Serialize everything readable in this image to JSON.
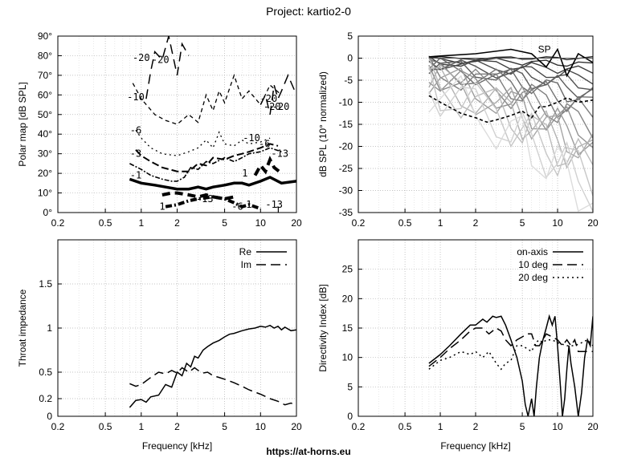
{
  "page": {
    "title": "Project: kartio2-0",
    "footer_url": "https://at-horns.eu"
  },
  "chart_data": [
    {
      "id": "polar-map",
      "type": "contour",
      "xlabel": "",
      "ylabel": "Polar map [dB SPL]",
      "xscale": "log",
      "xlim": [
        0.2,
        20
      ],
      "ylim": [
        0,
        90
      ],
      "xticks": [
        "0.2",
        "0.5",
        "1",
        "2",
        "5",
        "10",
        "20"
      ],
      "xtick_values": [
        0.2,
        0.5,
        1,
        2,
        5,
        10,
        20
      ],
      "yticks": [
        "0°",
        "10°",
        "20°",
        "30°",
        "40°",
        "50°",
        "60°",
        "70°",
        "80°",
        "90°"
      ],
      "ytick_values": [
        0,
        10,
        20,
        30,
        40,
        50,
        60,
        70,
        80,
        90
      ],
      "grid": true,
      "contours": [
        {
          "level": "-1",
          "x": [
            0.8,
            1.0,
            1.3,
            1.6,
            2.0,
            2.5,
            3.0,
            3.5,
            4.0,
            5.0,
            6.0,
            7.0,
            8.0,
            10.0,
            12.0,
            15.0,
            20.0
          ],
          "y": [
            17,
            15,
            14,
            13,
            12,
            12,
            13,
            12,
            13,
            14,
            15,
            15,
            14,
            16,
            18,
            15,
            16
          ]
        },
        {
          "level": "",
          "x": [
            0.8,
            1.0,
            1.2,
            1.5,
            1.8,
            2.0,
            2.3,
            2.6,
            3.0,
            3.5,
            4.0,
            5.0,
            6.0,
            7.0,
            8.0,
            10.0,
            12.0,
            15.0
          ],
          "y": [
            25,
            22,
            19,
            17,
            16,
            16,
            18,
            23,
            22,
            26,
            25,
            28,
            26,
            28,
            30,
            31,
            33,
            31
          ]
        },
        {
          "level": "-3",
          "x": [
            0.9,
            1.0,
            1.2,
            1.5,
            2.0,
            2.5,
            3.0,
            3.5,
            4.0,
            5.0,
            6.0,
            7.0,
            8.0,
            10.0,
            12.0,
            14.0
          ],
          "y": [
            32,
            29,
            26,
            23,
            21,
            21,
            25,
            24,
            28,
            27,
            29,
            30,
            31,
            33,
            35,
            34
          ]
        },
        {
          "level": "-6",
          "x": [
            0.9,
            1.0,
            1.2,
            1.5,
            2.0,
            2.5,
            3.0,
            3.5,
            4.0,
            4.5,
            5.0,
            6.0,
            7.0,
            8.0,
            10.0,
            12.0
          ],
          "y": [
            42,
            38,
            33,
            30,
            29,
            31,
            33,
            37,
            33,
            41,
            35,
            34,
            37,
            35,
            36,
            38
          ]
        },
        {
          "level": "-10",
          "x": [
            0.85,
            1.0,
            1.3,
            1.6,
            2.0,
            2.5,
            3.0,
            3.5,
            4.0,
            4.5,
            5.0,
            6.0,
            7.0,
            8.0,
            10.0,
            12.0,
            15.0
          ],
          "y": [
            66,
            58,
            50,
            47,
            45,
            50,
            46,
            60,
            52,
            62,
            56,
            70,
            58,
            62,
            55,
            65,
            60
          ]
        },
        {
          "level": "-20",
          "x": [
            1.1,
            1.2,
            1.3,
            1.5,
            1.7,
            2.0,
            2.2,
            2.5
          ],
          "y": [
            58,
            72,
            82,
            78,
            90,
            70,
            86,
            80
          ]
        },
        {
          "level": "-20",
          "x": [
            10.0,
            11.0,
            12.0,
            13.0,
            14.0,
            15.0,
            17.0,
            20.0
          ],
          "y": [
            55,
            60,
            50,
            65,
            58,
            62,
            70,
            60
          ]
        },
        {
          "level": "-13",
          "x": [
            1.5,
            1.8,
            2.0,
            2.5,
            3.0,
            3.5,
            4.0,
            5.0,
            6.0
          ],
          "y": [
            9,
            10,
            10,
            9,
            8,
            9,
            8,
            7,
            8
          ]
        },
        {
          "level": "1",
          "x": [
            1.6,
            2.0,
            2.5,
            3.0,
            4.0,
            5.0,
            6.0,
            7.0,
            8.0,
            10.0
          ],
          "y": [
            3,
            4,
            6,
            7,
            8,
            7,
            5,
            3,
            4,
            2
          ]
        },
        {
          "level": "-13",
          "x": [
            9.0,
            10.0,
            11.0,
            12.0,
            13.0,
            15.0
          ],
          "y": [
            19,
            24,
            21,
            27,
            23,
            20
          ]
        }
      ],
      "contour_labels": [
        {
          "text": "-20",
          "x": 1.0,
          "y": 79
        },
        {
          "text": "-20",
          "x": 1.45,
          "y": 78
        },
        {
          "text": "-10",
          "x": 0.9,
          "y": 59
        },
        {
          "text": "-6",
          "x": 0.9,
          "y": 42
        },
        {
          "text": "-3",
          "x": 0.9,
          "y": 30
        },
        {
          "text": "-1",
          "x": 0.9,
          "y": 19
        },
        {
          "text": "1",
          "x": 1.5,
          "y": 3
        },
        {
          "text": "-13",
          "x": 3.4,
          "y": 7
        },
        {
          "text": "-6",
          "x": 6.4,
          "y": 3
        },
        {
          "text": "1",
          "x": 8.0,
          "y": 4
        },
        {
          "text": "-13",
          "x": 13.0,
          "y": 4
        },
        {
          "text": "1",
          "x": 14.0,
          "y": 1
        },
        {
          "text": "1",
          "x": 7.4,
          "y": 20
        },
        {
          "text": "-10",
          "x": 8.4,
          "y": 38
        },
        {
          "text": "-6",
          "x": 10.8,
          "y": 35
        },
        {
          "text": "-13",
          "x": 14.5,
          "y": 30
        },
        {
          "text": "-20",
          "x": 11.7,
          "y": 58
        },
        {
          "text": "-20",
          "x": 12.5,
          "y": 54
        },
        {
          "text": "-20",
          "x": 14.8,
          "y": 54
        }
      ]
    },
    {
      "id": "normalized-spl",
      "type": "line",
      "xlabel": "",
      "ylabel": "dB SPL (10° normalized)",
      "xscale": "log",
      "xlim": [
        0.2,
        20
      ],
      "ylim": [
        -35,
        5
      ],
      "xticks": [
        "0.2",
        "0.5",
        "1",
        "2",
        "5",
        "10",
        "20"
      ],
      "xtick_values": [
        0.2,
        0.5,
        1,
        2,
        5,
        10,
        20
      ],
      "yticks": [
        "5",
        "0",
        "-5",
        "-10",
        "-15",
        "-20",
        "-25",
        "-30",
        "-35"
      ],
      "ytick_values": [
        5,
        0,
        -5,
        -10,
        -15,
        -20,
        -25,
        -30,
        -35
      ],
      "grid": true,
      "annotations": [
        {
          "text": "SP",
          "x": 6.8,
          "y": 2
        }
      ],
      "reference_series": {
        "x": [
          0.8,
          1.0,
          2.0,
          4.0,
          6.0,
          8.0,
          10.0,
          12.0,
          15.0,
          20.0
        ],
        "y": [
          0.3,
          0.5,
          1.0,
          2.0,
          1.0,
          -2.0,
          2.0,
          -4.0,
          1.0,
          -1.0
        ]
      },
      "dashed_series": {
        "x": [
          0.8,
          1.0,
          1.5,
          2.0,
          2.5,
          3.0,
          4.0,
          5.0,
          6.0,
          7.0,
          8.0,
          10.0,
          12.0,
          15.0,
          20.0
        ],
        "y": [
          -8.5,
          -10.0,
          -12.5,
          -13.5,
          -14.5,
          -14.0,
          -13.0,
          -12.0,
          -13.5,
          -11.0,
          -11.0,
          -10.0,
          -9.0,
          -10.0,
          -9.5
        ]
      },
      "family": {
        "offsets": [
          0,
          -1.5,
          -3,
          -4.5,
          -6,
          -7.5,
          -9,
          -11,
          -13,
          -15,
          -17,
          -19,
          -21,
          -23,
          -25,
          -27,
          -29,
          -31
        ],
        "x": [
          0.8,
          1.0,
          1.5,
          2.0,
          3.0,
          4.0,
          5.0,
          6.0,
          8.0,
          10.0,
          12.0,
          15.0,
          20.0
        ]
      }
    },
    {
      "id": "throat-impedance",
      "type": "line",
      "xlabel": "Frequency [kHz]",
      "ylabel": "Throat impedance",
      "xscale": "log",
      "xlim": [
        0.2,
        20
      ],
      "ylim": [
        0,
        2
      ],
      "xticks": [
        "0.2",
        "0.5",
        "1",
        "2",
        "5",
        "10",
        "20"
      ],
      "xtick_values": [
        0.2,
        0.5,
        1,
        2,
        5,
        10,
        20
      ],
      "yticks": [
        "0",
        "0.2",
        "0.5",
        "1",
        "1.5"
      ],
      "ytick_values": [
        0,
        0.2,
        0.5,
        1,
        1.5
      ],
      "grid": true,
      "legend": "top-right",
      "series": [
        {
          "name": "Re",
          "style": "solid",
          "x": [
            0.8,
            0.9,
            1.0,
            1.1,
            1.2,
            1.4,
            1.6,
            1.8,
            2.0,
            2.2,
            2.4,
            2.6,
            2.8,
            3.0,
            3.3,
            3.6,
            4.0,
            4.5,
            5.0,
            5.5,
            6.0,
            7.0,
            8.0,
            9.0,
            10.0,
            11.0,
            12.0,
            13.0,
            14.0,
            15.0,
            16.0,
            18.0,
            20.0
          ],
          "y": [
            0.1,
            0.18,
            0.19,
            0.16,
            0.22,
            0.24,
            0.36,
            0.33,
            0.5,
            0.46,
            0.6,
            0.56,
            0.68,
            0.66,
            0.75,
            0.79,
            0.83,
            0.86,
            0.9,
            0.93,
            0.94,
            0.97,
            0.99,
            1.0,
            1.02,
            1.01,
            1.03,
            1.0,
            1.02,
            0.98,
            1.01,
            0.97,
            0.98
          ]
        },
        {
          "name": "Im",
          "style": "dashed",
          "x": [
            0.8,
            0.9,
            1.0,
            1.2,
            1.4,
            1.6,
            1.8,
            2.0,
            2.2,
            2.5,
            2.8,
            3.0,
            3.3,
            3.6,
            4.0,
            4.5,
            5.0,
            5.5,
            6.0,
            7.0,
            8.0,
            10.0,
            12.0,
            14.0,
            16.0,
            18.0,
            20.0
          ],
          "y": [
            0.37,
            0.34,
            0.36,
            0.44,
            0.5,
            0.48,
            0.52,
            0.49,
            0.55,
            0.5,
            0.55,
            0.52,
            0.49,
            0.5,
            0.46,
            0.44,
            0.42,
            0.4,
            0.38,
            0.34,
            0.3,
            0.25,
            0.2,
            0.17,
            0.13,
            0.15,
            0.12
          ]
        }
      ]
    },
    {
      "id": "directivity-index",
      "type": "line",
      "xlabel": "Frequency [kHz]",
      "ylabel": "Directivity Index [dB]",
      "xscale": "log",
      "xlim": [
        0.2,
        20
      ],
      "ylim": [
        0,
        30
      ],
      "xticks": [
        "0.2",
        "0.5",
        "1",
        "2",
        "5",
        "10",
        "20"
      ],
      "xtick_values": [
        0.2,
        0.5,
        1,
        2,
        5,
        10,
        20
      ],
      "yticks": [
        "0",
        "5",
        "10",
        "15",
        "20",
        "25"
      ],
      "ytick_values": [
        0,
        5,
        10,
        15,
        20,
        25
      ],
      "grid": true,
      "legend": "top-right",
      "series": [
        {
          "name": "on-axis",
          "style": "solid",
          "x": [
            0.8,
            1.0,
            1.2,
            1.5,
            1.8,
            2.0,
            2.3,
            2.5,
            2.8,
            3.0,
            3.3,
            3.6,
            4.0,
            4.5,
            5.0,
            5.3,
            5.6,
            6.0,
            6.3,
            6.6,
            7.0,
            7.5,
            8.0,
            8.5,
            9.0,
            9.5,
            10.0,
            10.5,
            11.0,
            11.5,
            12.0,
            12.5,
            13.0,
            14.0,
            15.0,
            16.0,
            17.0,
            18.0,
            19.0,
            20.0
          ],
          "y": [
            9,
            10.5,
            12,
            14,
            15.5,
            15.5,
            16.5,
            16,
            17,
            16.8,
            17,
            15.5,
            13,
            10,
            6,
            2,
            0,
            3,
            0,
            5,
            10,
            13,
            15,
            17,
            15.5,
            17,
            12,
            6,
            0,
            3,
            8,
            12,
            9,
            5,
            0,
            4,
            10,
            13,
            12,
            17
          ]
        },
        {
          "name": "10 deg",
          "style": "dashed",
          "x": [
            0.8,
            1.0,
            1.2,
            1.5,
            1.8,
            2.0,
            2.3,
            2.6,
            3.0,
            3.3,
            3.6,
            4.0,
            4.5,
            5.0,
            5.5,
            6.0,
            6.5,
            7.0,
            7.5,
            8.0,
            9.0,
            10.0,
            11.0,
            12.0,
            13.0,
            14.0,
            15.0,
            16.0,
            18.0,
            20.0
          ],
          "y": [
            8.5,
            10,
            11.5,
            13,
            14.5,
            15,
            15,
            14,
            15,
            14.5,
            13,
            12,
            13,
            13.5,
            14,
            14,
            12,
            12,
            13,
            14,
            13.5,
            13,
            12,
            13,
            12,
            13,
            11,
            11,
            11,
            11
          ]
        },
        {
          "name": "20 deg",
          "style": "dotted",
          "x": [
            0.8,
            1.0,
            1.2,
            1.5,
            1.8,
            2.0,
            2.3,
            2.6,
            3.0,
            3.3,
            3.6,
            4.0,
            4.5,
            5.0,
            5.5,
            6.0,
            6.5,
            7.0,
            7.5,
            8.0,
            9.0,
            10.0,
            12.0,
            14.0,
            16.0,
            18.0,
            20.0
          ],
          "y": [
            8,
            9.5,
            10,
            11,
            10.5,
            11,
            10,
            11,
            9,
            8,
            9,
            9.5,
            12,
            12,
            11.5,
            11,
            12.5,
            13,
            12.5,
            13,
            13,
            12.5,
            12,
            12,
            12.5,
            13,
            12
          ]
        }
      ]
    }
  ]
}
